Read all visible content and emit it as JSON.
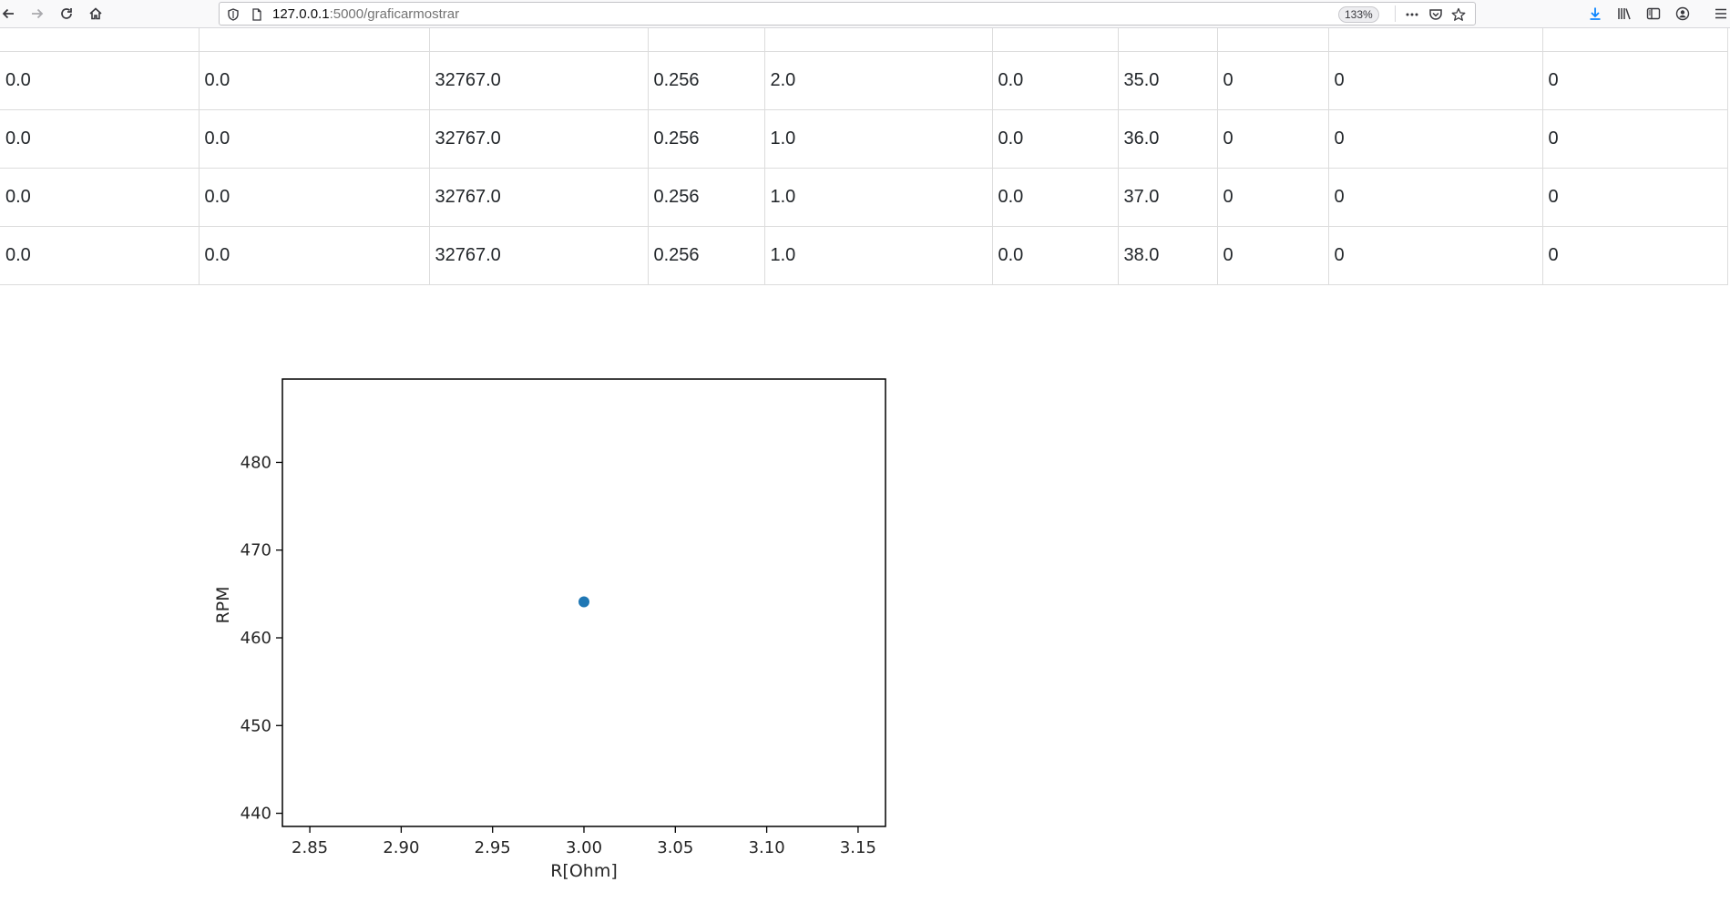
{
  "browser": {
    "url_host": "127.0.0.1",
    "url_path": ":5000/graficarmostrar",
    "zoom": "133%"
  },
  "table": {
    "rows": [
      [
        "0.0",
        "0.0",
        "32767.0",
        "0.256",
        "2.0",
        "0.0",
        "35.0",
        "0",
        "0",
        "0"
      ],
      [
        "0.0",
        "0.0",
        "32767.0",
        "0.256",
        "1.0",
        "0.0",
        "36.0",
        "0",
        "0",
        "0"
      ],
      [
        "0.0",
        "0.0",
        "32767.0",
        "0.256",
        "1.0",
        "0.0",
        "37.0",
        "0",
        "0",
        "0"
      ],
      [
        "0.0",
        "0.0",
        "32767.0",
        "0.256",
        "1.0",
        "0.0",
        "38.0",
        "0",
        "0",
        "0"
      ]
    ]
  },
  "chart_data": {
    "type": "scatter",
    "title": "",
    "xlabel": "R[Ohm]",
    "ylabel": "RPM",
    "xlim": [
      2.835,
      3.165
    ],
    "ylim": [
      438.5,
      489.5
    ],
    "xticks": [
      "2.85",
      "2.90",
      "2.95",
      "3.00",
      "3.05",
      "3.10",
      "3.15"
    ],
    "xtick_values": [
      2.85,
      2.9,
      2.95,
      3.0,
      3.05,
      3.1,
      3.15
    ],
    "yticks": [
      "440",
      "450",
      "460",
      "470",
      "480"
    ],
    "ytick_values": [
      440,
      450,
      460,
      470,
      480
    ],
    "grid": false,
    "series": [
      {
        "x": [
          3.0
        ],
        "y": [
          464.1
        ],
        "color": "#1f77b4"
      }
    ]
  }
}
